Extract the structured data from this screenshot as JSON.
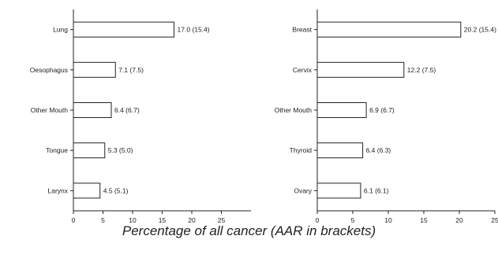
{
  "chart_data": [
    {
      "type": "bar",
      "orientation": "horizontal",
      "categories": [
        "Lung",
        "Oesophagus",
        "Other Mouth",
        "Tongue",
        "Larynx"
      ],
      "values": [
        17.0,
        7.1,
        6.4,
        5.3,
        4.5
      ],
      "data_labels": [
        "17.0 (15.4)",
        "7.1 (7.5)",
        "6.4 (6.7)",
        "5.3 (5.0)",
        "4.5 (5.1)"
      ],
      "xlim": [
        0,
        30
      ],
      "xticks": [
        "0",
        "5",
        "10",
        "15",
        "20",
        "25"
      ],
      "grid": false
    },
    {
      "type": "bar",
      "orientation": "horizontal",
      "categories": [
        "Breast",
        "Cervix",
        "Other Mouth",
        "Thyroid",
        "Ovary"
      ],
      "values": [
        20.2,
        12.2,
        6.9,
        6.4,
        6.1
      ],
      "data_labels": [
        "20.2 (15.4)",
        "12.2 (7.5)",
        "6.9 (6.7)",
        "6.4 (6.3)",
        "6.1 (6.1)"
      ],
      "xlim": [
        0,
        25
      ],
      "xticks": [
        "0",
        "5",
        "10",
        "15",
        "20",
        "25"
      ],
      "grid": false
    }
  ],
  "footer": {
    "caption": "Percentage of all cancer (AAR in brackets)"
  }
}
